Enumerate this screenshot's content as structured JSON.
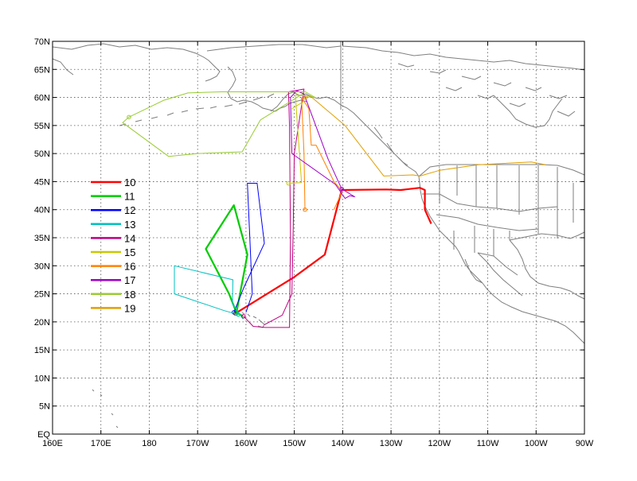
{
  "map": {
    "lon_range": [
      160,
      270
    ],
    "lat_range": [
      0,
      70
    ],
    "lon_ticks": [
      {
        "value": 160,
        "label": "160E"
      },
      {
        "value": 170,
        "label": "170E"
      },
      {
        "value": 180,
        "label": "180"
      },
      {
        "value": 190,
        "label": "170W"
      },
      {
        "value": 200,
        "label": "160W"
      },
      {
        "value": 210,
        "label": "150W"
      },
      {
        "value": 220,
        "label": "140W"
      },
      {
        "value": 230,
        "label": "130W"
      },
      {
        "value": 240,
        "label": "120W"
      },
      {
        "value": 250,
        "label": "110W"
      },
      {
        "value": 260,
        "label": "100W"
      },
      {
        "value": 270,
        "label": "90W"
      }
    ],
    "lat_ticks": [
      {
        "value": 0,
        "label": "EQ"
      },
      {
        "value": 5,
        "label": "5N"
      },
      {
        "value": 10,
        "label": "10N"
      },
      {
        "value": 15,
        "label": "15N"
      },
      {
        "value": 20,
        "label": "20N"
      },
      {
        "value": 25,
        "label": "25N"
      },
      {
        "value": 30,
        "label": "30N"
      },
      {
        "value": 35,
        "label": "35N"
      },
      {
        "value": 40,
        "label": "40N"
      },
      {
        "value": 45,
        "label": "45N"
      },
      {
        "value": 50,
        "label": "50N"
      },
      {
        "value": 55,
        "label": "55N"
      },
      {
        "value": 60,
        "label": "60N"
      },
      {
        "value": 65,
        "label": "65N"
      },
      {
        "value": 70,
        "label": "70N"
      }
    ],
    "grid": "dotted",
    "coastline_color": "#7f7f7f",
    "legend_placement": "left"
  },
  "tracks": [
    {
      "name": "10",
      "color": "#ff0000",
      "thick": true,
      "points": [
        [
          197.8,
          21.5
        ],
        [
          210,
          28
        ],
        [
          216.3,
          32
        ],
        [
          219.8,
          43.5
        ],
        [
          229,
          43.6
        ],
        [
          232,
          43.5
        ],
        [
          236,
          43.9
        ],
        [
          237,
          43.5
        ],
        [
          237,
          40
        ],
        [
          238.3,
          37.5
        ]
      ]
    },
    {
      "name": "11",
      "color": "#00cc00",
      "thick": true,
      "points": [
        [
          198,
          21.5
        ],
        [
          200.3,
          32
        ],
        [
          197.5,
          40.8
        ],
        [
          191.7,
          33
        ],
        [
          196.5,
          25
        ],
        [
          198,
          21.7
        ],
        [
          199.4,
          21
        ]
      ]
    },
    {
      "name": "12",
      "color": "#0000ff",
      "thick": false,
      "points": [
        [
          197.5,
          21.7
        ],
        [
          199.5,
          26
        ],
        [
          203.8,
          34
        ],
        [
          202.3,
          44.7
        ],
        [
          200.3,
          44.7
        ],
        [
          200.8,
          34.8
        ],
        [
          201.3,
          25
        ],
        [
          200,
          21.7
        ]
      ]
    },
    {
      "name": "13",
      "color": "#00c0c0",
      "thick": false,
      "points": [
        [
          198.4,
          21.3
        ],
        [
          195.5,
          22
        ],
        [
          185.2,
          25
        ],
        [
          185.2,
          30
        ],
        [
          197.3,
          27.5
        ],
        [
          197.2,
          23.2
        ],
        [
          199.4,
          20.5
        ]
      ]
    },
    {
      "name": "14",
      "color": "#c00080",
      "thick": false,
      "points": [
        [
          199.5,
          21
        ],
        [
          201.5,
          19.2
        ],
        [
          204,
          19
        ],
        [
          209,
          19
        ],
        [
          209.2,
          35
        ],
        [
          209,
          55
        ],
        [
          208.8,
          61
        ],
        [
          212,
          61.5
        ],
        [
          210,
          50
        ],
        [
          209.8,
          38
        ],
        [
          209.5,
          25
        ],
        [
          207.5,
          21.2
        ],
        [
          203.8,
          19.5
        ]
      ]
    },
    {
      "name": "15",
      "color": "#c8c800",
      "thick": false,
      "points": [
        [
          208.8,
          44.7
        ],
        [
          211.5,
          44.8
        ],
        [
          210.2,
          60.4
        ],
        [
          212,
          60.3
        ],
        [
          211.8,
          59.2
        ],
        [
          209.5,
          58
        ]
      ]
    },
    {
      "name": "16",
      "color": "#ff8000",
      "thick": false,
      "points": [
        [
          212.2,
          40
        ],
        [
          212,
          50
        ],
        [
          211.5,
          60
        ],
        [
          213,
          58
        ],
        [
          213.5,
          51.5
        ],
        [
          214.5,
          51.5
        ],
        [
          218.2,
          45
        ],
        [
          219.7,
          43.5
        ],
        [
          219.5,
          42.5
        ],
        [
          218.2,
          40
        ]
      ]
    },
    {
      "name": "17",
      "color": "#a000c8",
      "thick": false,
      "points": [
        [
          219.8,
          43.7
        ],
        [
          217,
          49
        ],
        [
          214,
          56
        ],
        [
          212,
          60.6
        ],
        [
          210.5,
          61.2
        ],
        [
          209.2,
          60
        ],
        [
          209.5,
          50
        ],
        [
          218.5,
          44.5
        ],
        [
          220.5,
          42
        ],
        [
          221.5,
          42.5
        ],
        [
          222.5,
          42.3
        ],
        [
          219.8,
          43.7
        ]
      ]
    },
    {
      "name": "18",
      "color": "#99cc33",
      "thick": false,
      "points": [
        [
          175.8,
          56.5
        ],
        [
          183,
          59.5
        ],
        [
          188,
          60.8
        ],
        [
          195,
          61
        ],
        [
          203,
          61
        ],
        [
          212.3,
          61
        ],
        [
          214.3,
          60
        ],
        [
          211.5,
          60.5
        ],
        [
          203,
          56
        ],
        [
          201,
          53
        ],
        [
          199.2,
          50.3
        ],
        [
          190,
          50
        ],
        [
          184,
          49.5
        ],
        [
          174.5,
          55.5
        ],
        [
          175.8,
          56.5
        ]
      ]
    },
    {
      "name": "19",
      "color": "#e0a000",
      "thick": false,
      "points": [
        [
          212.3,
          60
        ],
        [
          213.5,
          60.1
        ],
        [
          220.5,
          55
        ],
        [
          228.5,
          46
        ],
        [
          234.5,
          46.2
        ],
        [
          236,
          46
        ],
        [
          240,
          47
        ],
        [
          248,
          48
        ],
        [
          259,
          48.5
        ],
        [
          262,
          48
        ]
      ]
    }
  ]
}
